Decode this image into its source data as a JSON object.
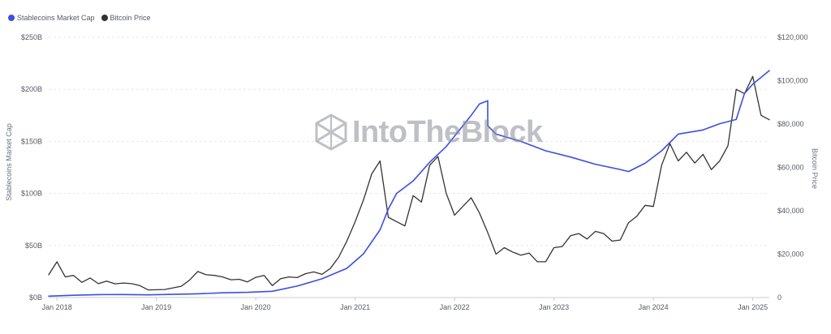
{
  "chart_data": {
    "type": "line",
    "legend": [
      {
        "name": "Stablecoins Market Cap",
        "color": "#3b4fe0"
      },
      {
        "name": "Bitcoin Price",
        "color": "#333333"
      }
    ],
    "legend_placement": "top-left",
    "watermark": "IntoTheBlock",
    "x_ticks": [
      "Jan 2018",
      "Jan 2019",
      "Jan 2020",
      "Jan 2021",
      "Jan 2022",
      "Jan 2023",
      "Jan 2024",
      "Jan 2025"
    ],
    "x_range": [
      "2017-12",
      "2025-03"
    ],
    "y_left": {
      "label": "Stablecoins Market Cap",
      "ticks": [
        "$0B",
        "$50B",
        "$100B",
        "$150B",
        "$200B",
        "$250B"
      ],
      "range": [
        0,
        250
      ]
    },
    "y_right": {
      "label": "Bitcoin Price",
      "ticks": [
        "0",
        "$20,000",
        "$40,000",
        "$60,000",
        "$80,000",
        "$100,000",
        "$120,000"
      ],
      "range": [
        0,
        120000
      ]
    },
    "grid": "horizontal dashed",
    "series": [
      {
        "name": "Stablecoins Market Cap",
        "axis": "left",
        "color": "#3b4fe0",
        "points": [
          [
            "2017-12",
            1.3
          ],
          [
            "2018-03",
            2.2
          ],
          [
            "2018-06",
            2.8
          ],
          [
            "2018-09",
            2.9
          ],
          [
            "2018-12",
            2.6
          ],
          [
            "2019-03",
            3.0
          ],
          [
            "2019-06",
            3.6
          ],
          [
            "2019-09",
            4.5
          ],
          [
            "2019-12",
            5.0
          ],
          [
            "2020-03",
            6.0
          ],
          [
            "2020-06",
            11
          ],
          [
            "2020-09",
            18
          ],
          [
            "2020-12",
            28
          ],
          [
            "2021-02",
            42
          ],
          [
            "2021-04",
            65
          ],
          [
            "2021-05",
            85
          ],
          [
            "2021-06",
            100
          ],
          [
            "2021-08",
            112
          ],
          [
            "2021-10",
            130
          ],
          [
            "2021-12",
            145
          ],
          [
            "2022-01",
            155
          ],
          [
            "2022-03",
            175
          ],
          [
            "2022-04",
            186
          ],
          [
            "2022-05",
            189
          ],
          [
            "2022-05",
            165
          ],
          [
            "2022-06",
            157
          ],
          [
            "2022-09",
            150
          ],
          [
            "2022-12",
            141
          ],
          [
            "2023-03",
            135
          ],
          [
            "2023-06",
            128
          ],
          [
            "2023-09",
            123
          ],
          [
            "2023-10",
            121
          ],
          [
            "2023-12",
            129
          ],
          [
            "2024-02",
            141
          ],
          [
            "2024-04",
            157
          ],
          [
            "2024-07",
            161
          ],
          [
            "2024-09",
            167
          ],
          [
            "2024-11",
            171
          ],
          [
            "2024-12",
            196
          ],
          [
            "2025-01",
            205
          ],
          [
            "2025-03",
            218
          ]
        ]
      },
      {
        "name": "Bitcoin Price",
        "axis": "right",
        "color": "#333333",
        "points": [
          [
            "2017-12",
            10500
          ],
          [
            "2018-01",
            16500
          ],
          [
            "2018-02",
            9500
          ],
          [
            "2018-03",
            10200
          ],
          [
            "2018-04",
            7000
          ],
          [
            "2018-05",
            9000
          ],
          [
            "2018-06",
            6400
          ],
          [
            "2018-07",
            7600
          ],
          [
            "2018-08",
            6300
          ],
          [
            "2018-09",
            6700
          ],
          [
            "2018-10",
            6400
          ],
          [
            "2018-11",
            5500
          ],
          [
            "2018-12",
            3500
          ],
          [
            "2019-02",
            3700
          ],
          [
            "2019-04",
            5200
          ],
          [
            "2019-05",
            8000
          ],
          [
            "2019-06",
            12000
          ],
          [
            "2019-07",
            10500
          ],
          [
            "2019-08",
            10200
          ],
          [
            "2019-09",
            9500
          ],
          [
            "2019-10",
            8200
          ],
          [
            "2019-11",
            8400
          ],
          [
            "2019-12",
            7200
          ],
          [
            "2020-01",
            9300
          ],
          [
            "2020-02",
            10200
          ],
          [
            "2020-03",
            5500
          ],
          [
            "2020-04",
            8700
          ],
          [
            "2020-05",
            9500
          ],
          [
            "2020-06",
            9200
          ],
          [
            "2020-07",
            11000
          ],
          [
            "2020-08",
            11800
          ],
          [
            "2020-09",
            10700
          ],
          [
            "2020-10",
            13400
          ],
          [
            "2020-11",
            18500
          ],
          [
            "2020-12",
            26000
          ],
          [
            "2021-01",
            35000
          ],
          [
            "2021-02",
            45000
          ],
          [
            "2021-03",
            57000
          ],
          [
            "2021-04",
            63000
          ],
          [
            "2021-05",
            37000
          ],
          [
            "2021-06",
            35000
          ],
          [
            "2021-07",
            33000
          ],
          [
            "2021-08",
            47000
          ],
          [
            "2021-09",
            44000
          ],
          [
            "2021-10",
            61000
          ],
          [
            "2021-11",
            65000
          ],
          [
            "2021-12",
            48000
          ],
          [
            "2022-01",
            38000
          ],
          [
            "2022-02",
            42000
          ],
          [
            "2022-03",
            46000
          ],
          [
            "2022-04",
            39000
          ],
          [
            "2022-05",
            30000
          ],
          [
            "2022-06",
            20000
          ],
          [
            "2022-07",
            23000
          ],
          [
            "2022-08",
            21000
          ],
          [
            "2022-09",
            19500
          ],
          [
            "2022-10",
            20500
          ],
          [
            "2022-11",
            16500
          ],
          [
            "2022-12",
            16500
          ],
          [
            "2023-01",
            23000
          ],
          [
            "2023-02",
            23500
          ],
          [
            "2023-03",
            28500
          ],
          [
            "2023-04",
            29500
          ],
          [
            "2023-05",
            27000
          ],
          [
            "2023-06",
            30500
          ],
          [
            "2023-07",
            29500
          ],
          [
            "2023-08",
            26000
          ],
          [
            "2023-09",
            26500
          ],
          [
            "2023-10",
            34500
          ],
          [
            "2023-11",
            37500
          ],
          [
            "2023-12",
            42500
          ],
          [
            "2024-01",
            42000
          ],
          [
            "2024-02",
            61000
          ],
          [
            "2024-03",
            71000
          ],
          [
            "2024-04",
            63000
          ],
          [
            "2024-05",
            67000
          ],
          [
            "2024-06",
            62000
          ],
          [
            "2024-07",
            66000
          ],
          [
            "2024-08",
            59000
          ],
          [
            "2024-09",
            63000
          ],
          [
            "2024-10",
            70000
          ],
          [
            "2024-11",
            96000
          ],
          [
            "2024-12",
            94000
          ],
          [
            "2025-01",
            102000
          ],
          [
            "2025-02",
            84000
          ],
          [
            "2025-03",
            82000
          ]
        ]
      }
    ]
  }
}
